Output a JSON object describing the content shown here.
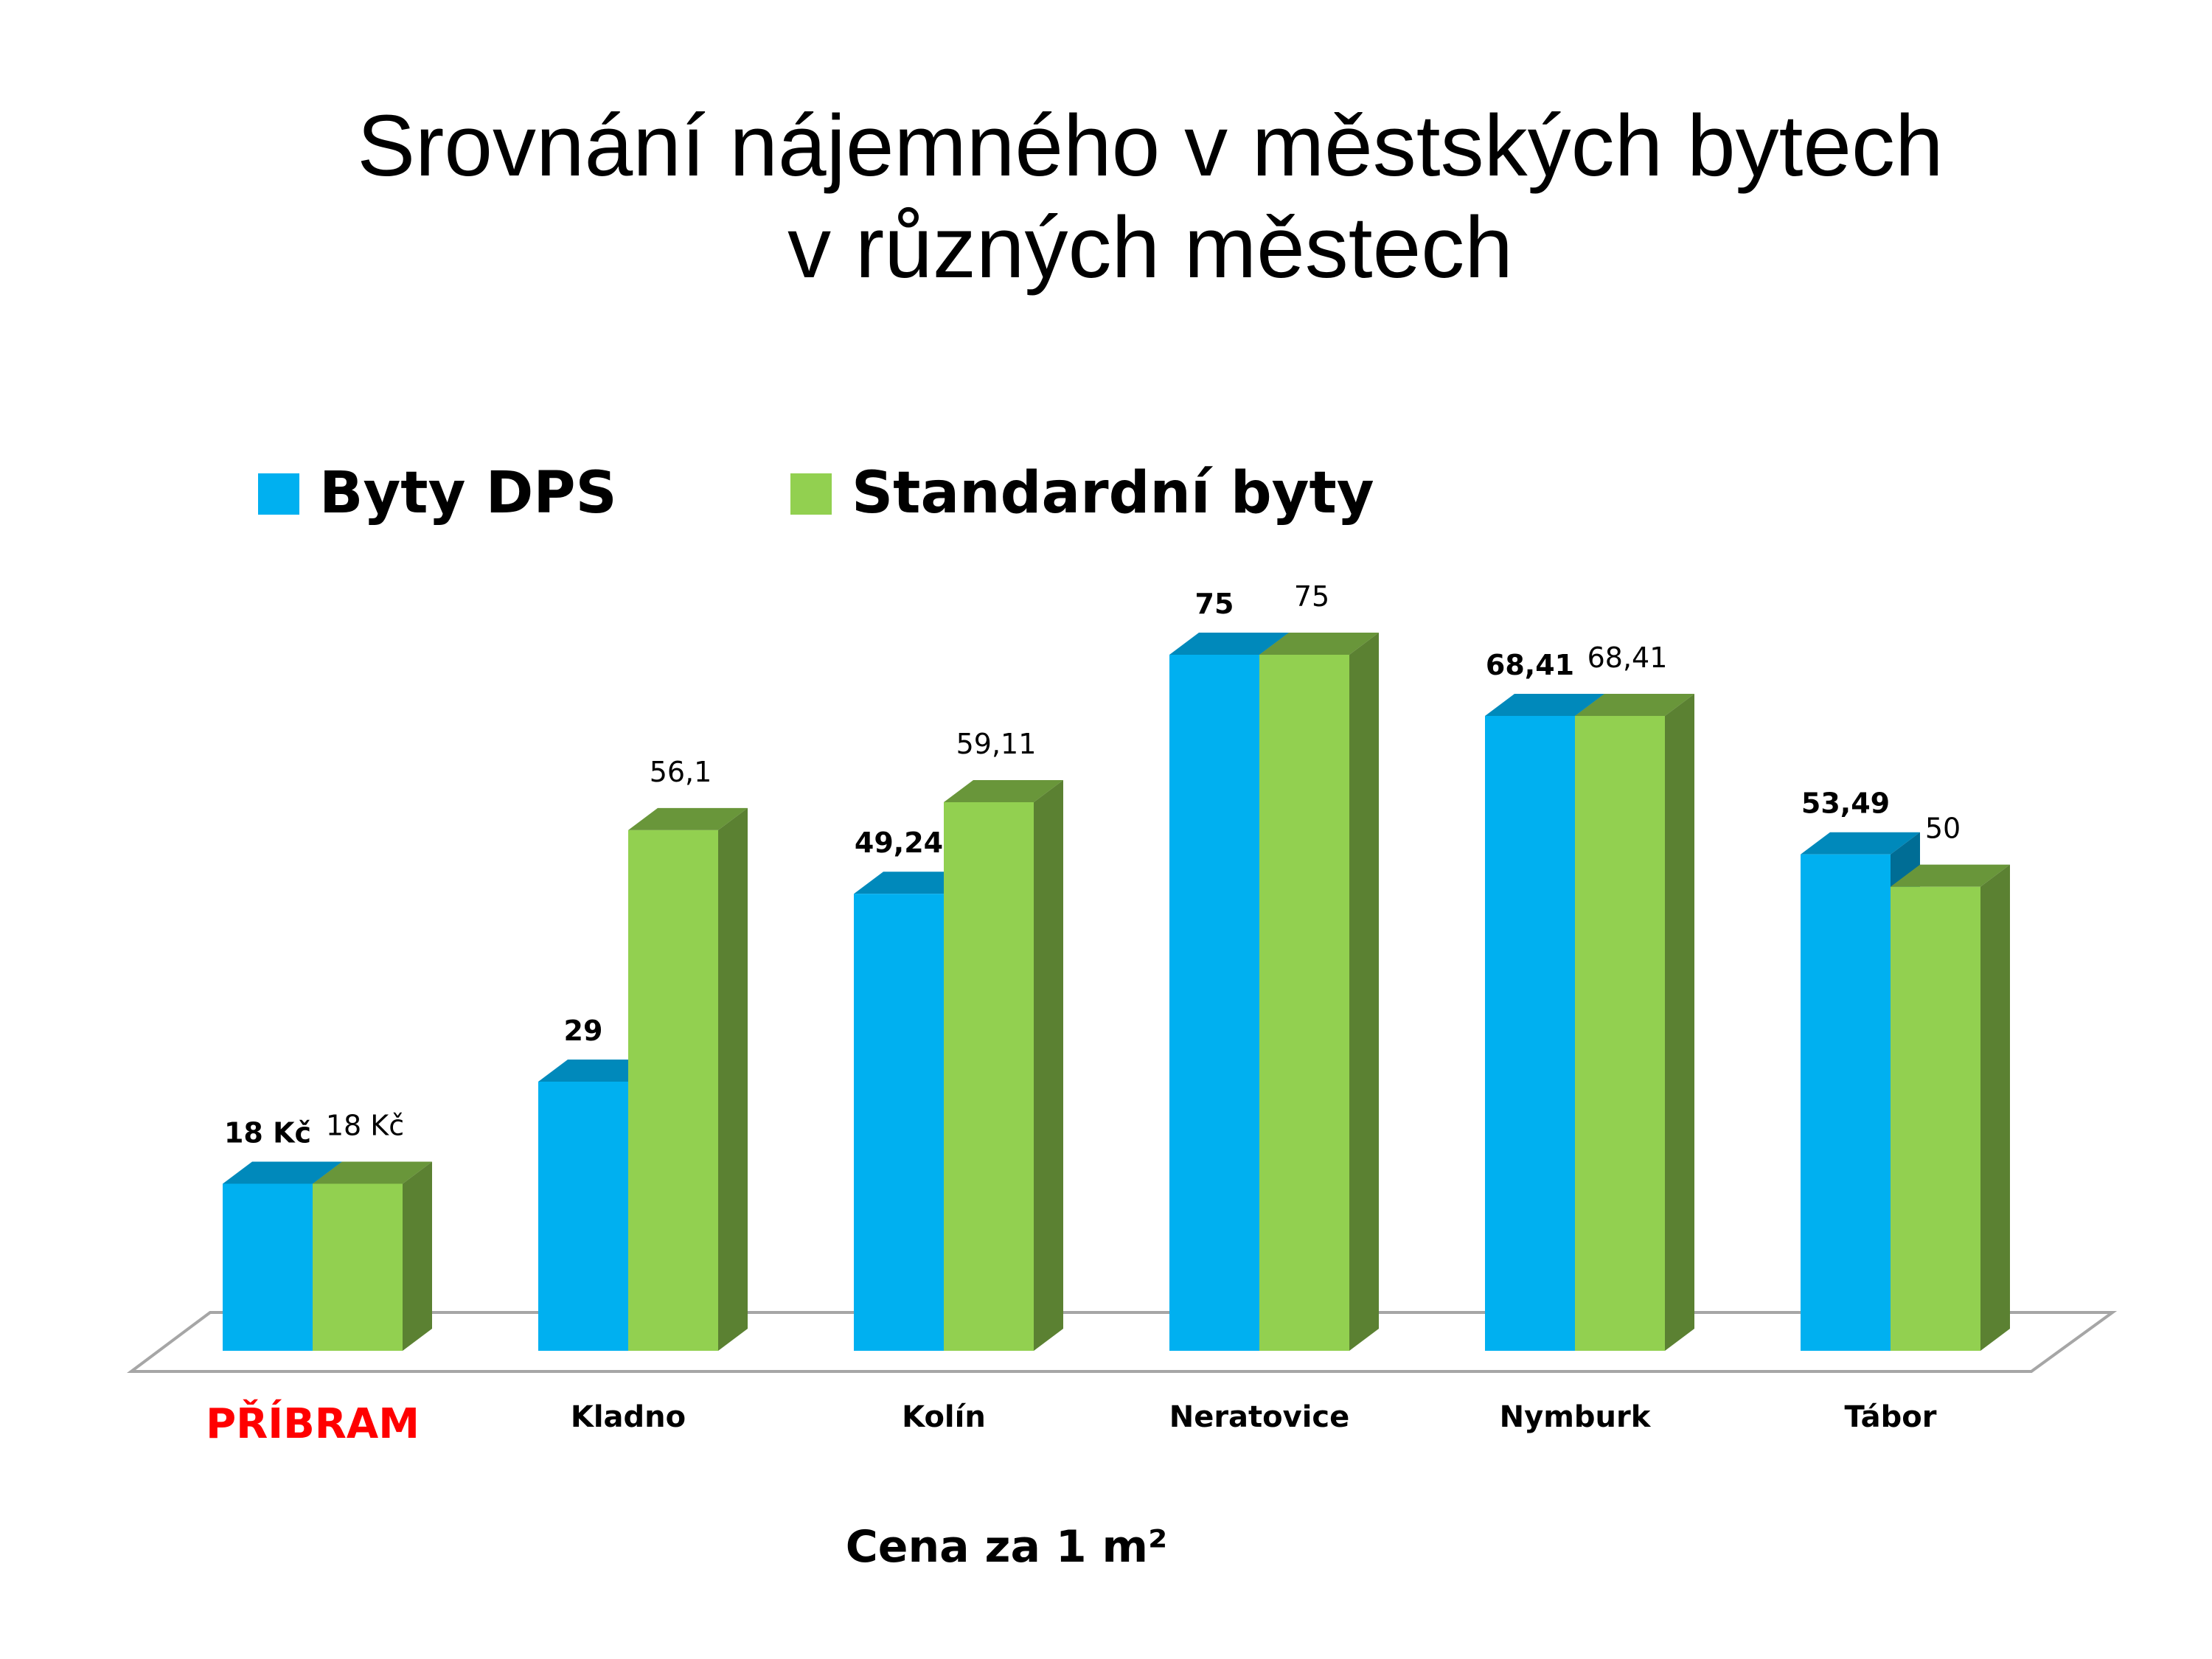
{
  "chart_data": {
    "type": "bar",
    "title_lines": [
      "Srovnání nájemného v městských bytech",
      "v různých městech"
    ],
    "xlabel": "Cena za 1 m²",
    "ylabel": "",
    "ylim": [
      0,
      75
    ],
    "grid": false,
    "legend_position": "top-left",
    "categories": [
      "PŘÍBRAM",
      "Kladno",
      "Kolín",
      "Neratovice",
      "Nymburk",
      "Tábor"
    ],
    "highlight_category": "PŘÍBRAM",
    "highlight_color": "#ff0000",
    "series": [
      {
        "name": "Byty DPS",
        "color": "#00b0f0",
        "values": [
          18,
          29,
          49.24,
          75,
          68.41,
          53.49
        ],
        "labels": [
          "18 Kč",
          "29",
          "49,24",
          "75",
          "68,41",
          "53,49"
        ],
        "label_weight": "bold"
      },
      {
        "name": "Standardní byty",
        "color": "#92d050",
        "values": [
          18,
          56.1,
          59.11,
          75,
          68.41,
          50
        ],
        "labels": [
          "18 Kč",
          "56,1",
          "59,11",
          "75",
          "68,41",
          "50"
        ],
        "label_weight": "normal"
      }
    ]
  }
}
